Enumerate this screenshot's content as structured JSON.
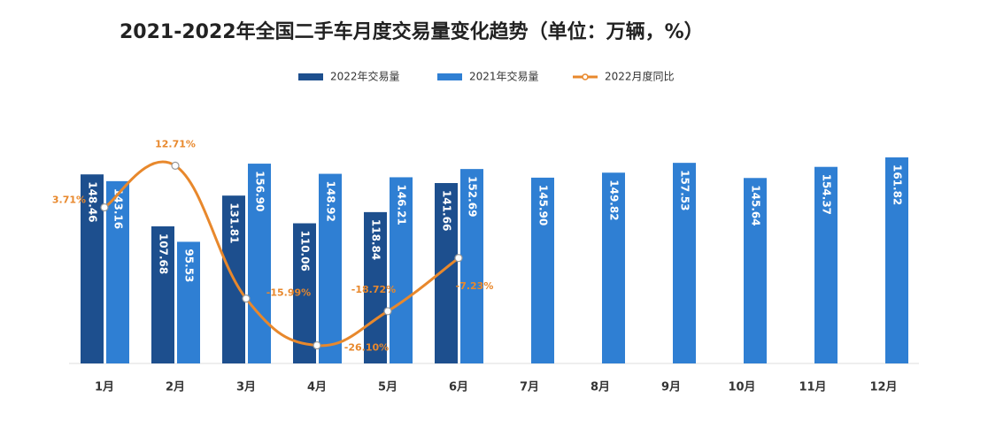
{
  "chart_data": {
    "type": "bar",
    "title": "2021-2022年全国二手车月度交易量变化趋势（单位：万辆，%）",
    "categories": [
      "1月",
      "2月",
      "3月",
      "4月",
      "5月",
      "6月",
      "7月",
      "8月",
      "9月",
      "10月",
      "11月",
      "12月"
    ],
    "ylim": [
      0,
      200
    ],
    "y2lim": [
      -30,
      25
    ],
    "legend": "top",
    "series": [
      {
        "name": "2022年交易量",
        "type": "bar",
        "color": "#1d4f8e",
        "values": [
          148.46,
          107.68,
          131.81,
          110.06,
          118.84,
          141.66,
          null,
          null,
          null,
          null,
          null,
          null
        ],
        "value_labels": [
          "148.46",
          "107.68",
          "131.81",
          "110.06",
          "118.84",
          "141.66",
          null,
          null,
          null,
          null,
          null,
          null
        ]
      },
      {
        "name": "2021年交易量",
        "type": "bar",
        "color": "#2f7fd3",
        "values": [
          143.16,
          95.53,
          156.9,
          148.92,
          146.21,
          152.69,
          145.9,
          149.82,
          157.53,
          145.64,
          154.37,
          161.82
        ],
        "value_labels": [
          "143.16",
          "95.53",
          "156.90",
          "148.92",
          "146.21",
          "152.69",
          "145.90",
          "149.82",
          "157.53",
          "145.64",
          "154.37",
          "161.82"
        ]
      },
      {
        "name": "2022月度同比",
        "type": "line",
        "axis": "y2",
        "color": "#e8882c",
        "values": [
          3.71,
          12.71,
          -15.99,
          -26.1,
          -18.72,
          -7.23,
          null,
          null,
          null,
          null,
          null,
          null
        ],
        "value_labels": [
          "3.71%",
          "12.71%",
          "-15.99%",
          "-26.10%",
          "-18.72%",
          "-7.23%",
          null,
          null,
          null,
          null,
          null,
          null
        ]
      }
    ]
  }
}
